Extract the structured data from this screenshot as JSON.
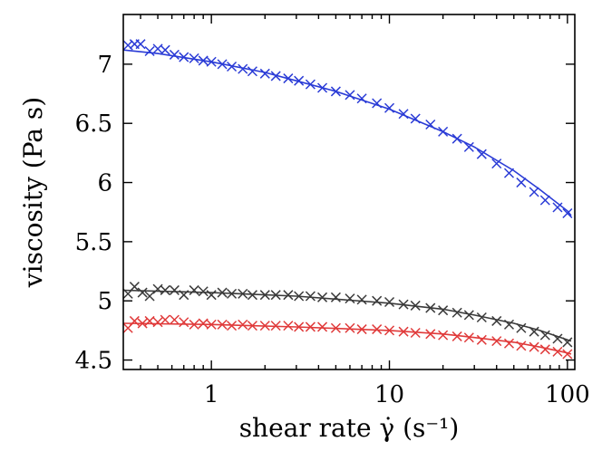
{
  "chart_data": {
    "type": "scatter",
    "title": "",
    "xlabel": "shear rate γ̇ (s⁻¹)",
    "ylabel": "viscosity (Pa s)",
    "xscale": "log",
    "xlim": [
      0.32,
      110
    ],
    "ylim": [
      4.42,
      7.42
    ],
    "xticks": [
      1,
      10,
      100
    ],
    "xtick_labels": [
      "1",
      "10",
      "100"
    ],
    "yticks": [
      4.5,
      5,
      5.5,
      6,
      6.5,
      7
    ],
    "ytick_labels": [
      "4.5",
      "5",
      "5.5",
      "6",
      "6.5",
      "7"
    ],
    "grid": false,
    "legend": "none",
    "series": [
      {
        "color": "#2a3bd6",
        "marker": "x",
        "x": [
          0.34,
          0.37,
          0.4,
          0.45,
          0.5,
          0.55,
          0.62,
          0.7,
          0.8,
          0.9,
          1.0,
          1.15,
          1.3,
          1.5,
          1.7,
          2.0,
          2.3,
          2.7,
          3.1,
          3.6,
          4.2,
          5.0,
          6.0,
          7.0,
          8.5,
          10,
          12,
          14,
          17,
          20,
          24,
          28,
          33,
          40,
          47,
          55,
          65,
          75,
          88,
          100
        ],
        "y": [
          7.16,
          7.17,
          7.17,
          7.11,
          7.13,
          7.12,
          7.08,
          7.06,
          7.05,
          7.03,
          7.02,
          7.0,
          6.98,
          6.96,
          6.94,
          6.92,
          6.9,
          6.88,
          6.86,
          6.83,
          6.8,
          6.77,
          6.74,
          6.71,
          6.67,
          6.63,
          6.58,
          6.54,
          6.49,
          6.43,
          6.37,
          6.3,
          6.24,
          6.16,
          6.08,
          6.0,
          5.92,
          5.85,
          5.79,
          5.74
        ],
        "fit_x": [
          0.32,
          0.5,
          1,
          2,
          3,
          5,
          10,
          20,
          30,
          50,
          70,
          100,
          105
        ],
        "fit_y": [
          7.12,
          7.09,
          7.02,
          6.93,
          6.86,
          6.77,
          6.62,
          6.43,
          6.3,
          6.1,
          5.94,
          5.76,
          5.72
        ]
      },
      {
        "color": "#3a3a3a",
        "marker": "x",
        "x": [
          0.34,
          0.37,
          0.41,
          0.45,
          0.5,
          0.55,
          0.62,
          0.7,
          0.8,
          0.9,
          1.0,
          1.15,
          1.3,
          1.5,
          1.7,
          2.0,
          2.3,
          2.7,
          3.1,
          3.6,
          4.2,
          5.0,
          6.0,
          7.0,
          8.5,
          10,
          12,
          14,
          17,
          20,
          24,
          28,
          33,
          40,
          47,
          55,
          65,
          75,
          88,
          100
        ],
        "y": [
          5.06,
          5.12,
          5.07,
          5.04,
          5.1,
          5.09,
          5.09,
          5.05,
          5.09,
          5.08,
          5.05,
          5.07,
          5.06,
          5.06,
          5.05,
          5.05,
          5.05,
          5.05,
          5.04,
          5.04,
          5.03,
          5.03,
          5.02,
          5.01,
          5.0,
          4.99,
          4.97,
          4.96,
          4.94,
          4.92,
          4.9,
          4.88,
          4.86,
          4.83,
          4.8,
          4.77,
          4.74,
          4.71,
          4.68,
          4.65
        ],
        "fit_x": [
          0.32,
          1,
          3,
          10,
          20,
          30,
          50,
          70,
          100,
          105
        ],
        "fit_y": [
          5.09,
          5.07,
          5.04,
          4.98,
          4.93,
          4.88,
          4.81,
          4.75,
          4.67,
          4.66
        ]
      },
      {
        "color": "#e03a3a",
        "marker": "x",
        "x": [
          0.34,
          0.37,
          0.41,
          0.45,
          0.5,
          0.55,
          0.62,
          0.7,
          0.8,
          0.9,
          1.0,
          1.15,
          1.3,
          1.5,
          1.7,
          2.0,
          2.3,
          2.7,
          3.1,
          3.6,
          4.2,
          5.0,
          6.0,
          7.0,
          8.5,
          10,
          12,
          14,
          17,
          20,
          24,
          28,
          33,
          40,
          47,
          55,
          65,
          75,
          88,
          100
        ],
        "y": [
          4.77,
          4.83,
          4.81,
          4.83,
          4.82,
          4.84,
          4.84,
          4.82,
          4.8,
          4.81,
          4.8,
          4.8,
          4.79,
          4.8,
          4.79,
          4.79,
          4.79,
          4.79,
          4.78,
          4.78,
          4.78,
          4.77,
          4.77,
          4.76,
          4.76,
          4.75,
          4.74,
          4.73,
          4.72,
          4.71,
          4.7,
          4.69,
          4.67,
          4.66,
          4.64,
          4.62,
          4.61,
          4.59,
          4.57,
          4.55
        ],
        "fit_x": [
          0.32,
          1,
          3,
          10,
          20,
          30,
          50,
          70,
          100,
          105
        ],
        "fit_y": [
          4.81,
          4.8,
          4.78,
          4.75,
          4.72,
          4.69,
          4.65,
          4.61,
          4.56,
          4.55
        ]
      }
    ]
  }
}
